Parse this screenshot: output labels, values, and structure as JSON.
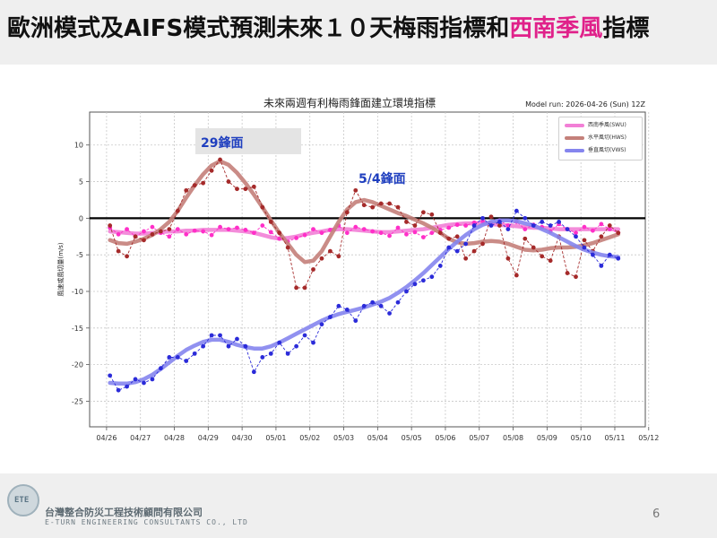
{
  "slide": {
    "title_parts": [
      "歐洲模式及AIFS模式預測未來１０天梅雨指標和",
      "西南季風",
      "指標"
    ],
    "company_zh": "台灣整合防災工程技術顧問有限公司",
    "company_en": "E-TURN ENGINEERING CONSULTANTS CO., LTD",
    "logo_text": "ETE",
    "page_number": "6"
  },
  "chart_data": {
    "type": "line",
    "title": "未來兩週有利梅雨鋒面建立環境指標",
    "model_run": "Model run: 2026-04-26 (Sun) 12Z",
    "ylabel": "風速或風切量(m/s)",
    "xlabel": "",
    "x_ticks": [
      "04/26",
      "04/27",
      "04/28",
      "04/29",
      "04/30",
      "05/01",
      "05/02",
      "05/03",
      "05/04",
      "05/05",
      "05/06",
      "05/07",
      "05/08",
      "05/09",
      "05/10",
      "05/11",
      "05/12"
    ],
    "y_ticks": [
      10,
      5,
      0,
      -5,
      -10,
      -15,
      -20,
      -25
    ],
    "xlim": [
      0,
      16.4
    ],
    "ylim": [
      -28.5,
      14.5
    ],
    "grid": true,
    "zero_line": true,
    "legend_position": "top-right",
    "annotations": [
      {
        "text": "29鋒面",
        "x": 3.0
      },
      {
        "text": "5/4鋒面",
        "x": 7.8
      }
    ],
    "series": [
      {
        "name": "西南季風(SWU)",
        "color": "#ff2fc8",
        "smooth_color": "#f27fd6",
        "x": [
          0.6,
          0.85,
          1.1,
          1.35,
          1.6,
          1.85,
          2.1,
          2.35,
          2.6,
          2.85,
          3.1,
          3.35,
          3.6,
          3.85,
          4.1,
          4.35,
          4.6,
          4.85,
          5.1,
          5.35,
          5.6,
          5.85,
          6.1,
          6.35,
          6.6,
          6.85,
          7.1,
          7.35,
          7.6,
          7.85,
          8.1,
          8.35,
          8.6,
          8.85,
          9.1,
          9.35,
          9.6,
          9.85,
          10.1,
          10.35,
          10.6,
          10.85,
          11.1,
          11.35,
          11.6,
          11.85,
          12.1,
          12.35,
          12.6,
          12.85,
          13.1,
          13.35,
          13.6,
          13.85,
          14.1,
          14.35,
          14.6,
          14.85,
          15.1,
          15.35,
          15.6
        ],
        "y": [
          -1.3,
          -2.2,
          -1.5,
          -2.5,
          -1.8,
          -1.2,
          -2.0,
          -2.5,
          -1.5,
          -2.2,
          -1.7,
          -1.8,
          -2.3,
          -1.2,
          -1.5,
          -1.3,
          -1.6,
          -2.0,
          -1.0,
          -1.9,
          -2.8,
          -3.2,
          -2.7,
          -2.3,
          -1.5,
          -2.0,
          -1.6,
          -1.0,
          -2.0,
          -1.2,
          -1.5,
          -1.8,
          -2.0,
          -2.4,
          -1.3,
          -2.2,
          -1.9,
          -2.6,
          -2.0,
          -1.6,
          -1.3,
          -0.9,
          -1.0,
          -0.6,
          -0.4,
          -0.7,
          -0.3,
          -1.0,
          -0.5,
          -1.5,
          -0.9,
          -1.2,
          -1.8,
          -0.8,
          -1.5,
          -2.0,
          -1.2,
          -1.7,
          -0.8,
          -1.5,
          -2.0
        ],
        "smooth_y": [
          -1.8,
          -1.9,
          -2.0,
          -2.1,
          -2.1,
          -2.0,
          -1.9,
          -1.8,
          -1.8,
          -1.7,
          -1.7,
          -1.6,
          -1.6,
          -1.6,
          -1.6,
          -1.7,
          -1.8,
          -2.0,
          -2.3,
          -2.6,
          -2.8,
          -2.7,
          -2.5,
          -2.2,
          -2.0,
          -1.8,
          -1.6,
          -1.5,
          -1.5,
          -1.6,
          -1.7,
          -1.8,
          -1.9,
          -1.9,
          -1.8,
          -1.7,
          -1.6,
          -1.5,
          -1.3,
          -1.1,
          -0.9,
          -0.8,
          -0.7,
          -0.7,
          -0.7,
          -0.8,
          -0.9,
          -1.0,
          -1.1,
          -1.2,
          -1.3,
          -1.3,
          -1.4,
          -1.5,
          -1.5,
          -1.5,
          -1.5,
          -1.5,
          -1.5,
          -1.5,
          -1.5
        ]
      },
      {
        "name": "水平風切(HWS)",
        "color": "#a52a2a",
        "smooth_color": "#c4807a",
        "x": [
          0.6,
          0.85,
          1.1,
          1.35,
          1.6,
          1.85,
          2.1,
          2.35,
          2.6,
          2.85,
          3.1,
          3.35,
          3.6,
          3.85,
          4.1,
          4.35,
          4.6,
          4.85,
          5.1,
          5.35,
          5.6,
          5.85,
          6.1,
          6.35,
          6.6,
          6.85,
          7.1,
          7.35,
          7.6,
          7.85,
          8.1,
          8.35,
          8.6,
          8.85,
          9.1,
          9.35,
          9.6,
          9.85,
          10.1,
          10.35,
          10.6,
          10.85,
          11.1,
          11.35,
          11.6,
          11.85,
          12.1,
          12.35,
          12.6,
          12.85,
          13.1,
          13.35,
          13.6,
          13.85,
          14.1,
          14.35,
          14.6,
          14.85,
          15.1,
          15.35,
          15.6
        ],
        "y": [
          -1.0,
          -4.5,
          -5.2,
          -2.5,
          -3.0,
          -2.2,
          -1.8,
          -1.5,
          1.0,
          3.8,
          4.5,
          4.8,
          6.5,
          8.0,
          5.0,
          4.0,
          4.0,
          4.3,
          1.5,
          -0.5,
          -2.0,
          -4.0,
          -9.5,
          -9.5,
          -7.0,
          -5.5,
          -4.5,
          -5.2,
          0.8,
          3.8,
          1.8,
          1.5,
          2.0,
          2.0,
          1.5,
          -0.5,
          -1.0,
          0.8,
          0.5,
          -2.0,
          -2.8,
          -2.5,
          -5.5,
          -4.5,
          -3.5,
          0.2,
          -1.0,
          -5.5,
          -7.8,
          -2.8,
          -4.0,
          -5.2,
          -5.8,
          -2.5,
          -7.5,
          -8.0,
          -3.0,
          -4.5,
          -2.5,
          -1.0,
          -2.0
        ],
        "smooth_y": [
          -3.0,
          -3.4,
          -3.5,
          -3.2,
          -2.8,
          -2.3,
          -1.5,
          -0.5,
          1.0,
          2.8,
          4.5,
          6.0,
          7.2,
          7.8,
          7.3,
          6.2,
          4.8,
          3.2,
          1.5,
          -0.3,
          -2.0,
          -3.5,
          -5.0,
          -6.0,
          -5.8,
          -4.5,
          -2.5,
          -0.5,
          1.2,
          2.2,
          2.5,
          2.2,
          1.7,
          1.2,
          0.7,
          0.3,
          -0.2,
          -0.7,
          -1.3,
          -2.0,
          -2.8,
          -3.3,
          -3.5,
          -3.4,
          -3.2,
          -3.1,
          -3.2,
          -3.5,
          -3.9,
          -4.3,
          -4.4,
          -4.3,
          -4.1,
          -4.0,
          -4.0,
          -3.9,
          -3.7,
          -3.4,
          -3.0,
          -2.6,
          -2.2
        ]
      },
      {
        "name": "垂直風切(VWS)",
        "color": "#2b2bd9",
        "smooth_color": "#8585ee",
        "x": [
          0.6,
          0.85,
          1.1,
          1.35,
          1.6,
          1.85,
          2.1,
          2.35,
          2.6,
          2.85,
          3.1,
          3.35,
          3.6,
          3.85,
          4.1,
          4.35,
          4.6,
          4.85,
          5.1,
          5.35,
          5.6,
          5.85,
          6.1,
          6.35,
          6.6,
          6.85,
          7.1,
          7.35,
          7.6,
          7.85,
          8.1,
          8.35,
          8.6,
          8.85,
          9.1,
          9.35,
          9.6,
          9.85,
          10.1,
          10.35,
          10.6,
          10.85,
          11.1,
          11.35,
          11.6,
          11.85,
          12.1,
          12.35,
          12.6,
          12.85,
          13.1,
          13.35,
          13.6,
          13.85,
          14.1,
          14.35,
          14.6,
          14.85,
          15.1,
          15.35,
          15.6
        ],
        "y": [
          -21.5,
          -23.5,
          -23.0,
          -22.0,
          -22.5,
          -22.0,
          -20.5,
          -19.0,
          -19.0,
          -19.5,
          -18.5,
          -17.5,
          -16.0,
          -16.0,
          -17.5,
          -16.5,
          -17.5,
          -21.0,
          -19.0,
          -18.5,
          -17.0,
          -18.5,
          -17.5,
          -16.0,
          -17.0,
          -14.5,
          -13.5,
          -12.0,
          -12.5,
          -14.0,
          -12.0,
          -11.5,
          -12.0,
          -13.0,
          -11.5,
          -10.0,
          -9.0,
          -8.5,
          -8.0,
          -6.5,
          -4.0,
          -4.5,
          -3.5,
          -1.0,
          0.0,
          -1.0,
          -0.5,
          -1.5,
          1.0,
          0.0,
          -1.0,
          -0.5,
          -1.0,
          -0.5,
          -1.5,
          -2.5,
          -4.0,
          -5.0,
          -6.5,
          -5.0,
          -5.5
        ],
        "smooth_y": [
          -22.5,
          -22.6,
          -22.6,
          -22.4,
          -22.0,
          -21.4,
          -20.6,
          -19.7,
          -18.8,
          -18.0,
          -17.4,
          -16.9,
          -16.6,
          -16.6,
          -16.9,
          -17.3,
          -17.6,
          -17.8,
          -17.8,
          -17.5,
          -17.0,
          -16.4,
          -15.8,
          -15.2,
          -14.6,
          -14.0,
          -13.5,
          -13.1,
          -12.8,
          -12.5,
          -12.2,
          -11.8,
          -11.4,
          -10.9,
          -10.2,
          -9.4,
          -8.5,
          -7.5,
          -6.4,
          -5.3,
          -4.2,
          -3.2,
          -2.3,
          -1.5,
          -0.9,
          -0.5,
          -0.3,
          -0.3,
          -0.4,
          -0.7,
          -1.0,
          -1.5,
          -2.0,
          -2.6,
          -3.2,
          -3.8,
          -4.3,
          -4.7,
          -5.0,
          -5.2,
          -5.3
        ]
      }
    ]
  }
}
